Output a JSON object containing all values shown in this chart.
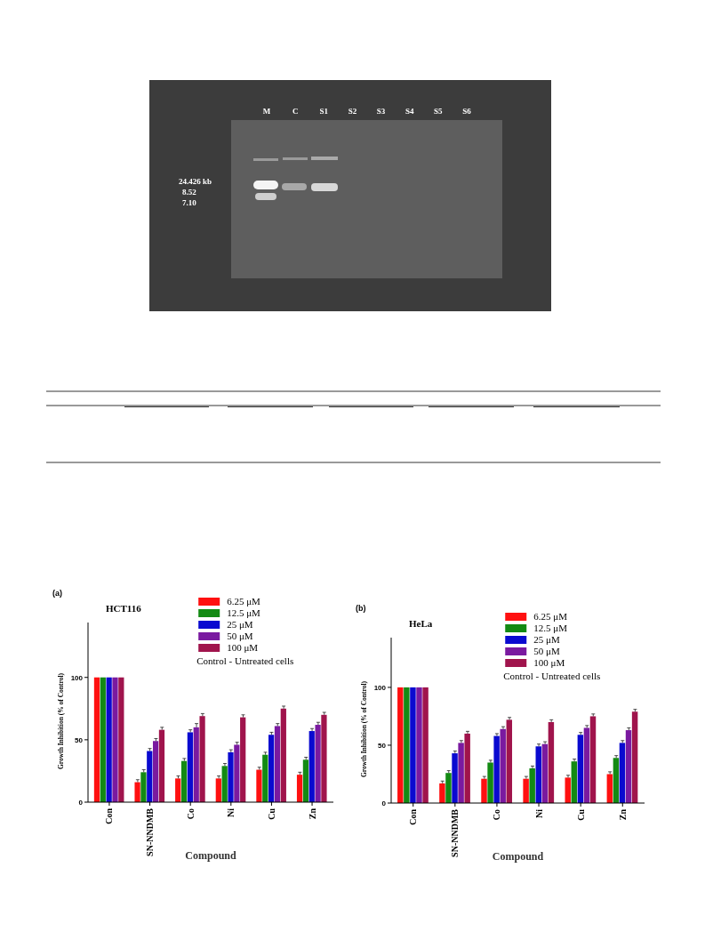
{
  "chart_data": [
    {
      "type": "other",
      "categories": [
        "M",
        "C",
        "S1",
        "S2",
        "S3",
        "S4",
        "S5",
        "S6"
      ],
      "annotations": [
        "24.426 kb",
        "8.52",
        "7.10"
      ]
    },
    {
      "type": "bar",
      "title": "HCT116",
      "xlabel": "Compound",
      "ylabel": "Growth Inhibition (% of Control)",
      "categories": [
        "Con",
        "SN-NNDMB",
        "Co",
        "Ni",
        "Cu",
        "Zn"
      ],
      "ylim": [
        0,
        144
      ],
      "yticks": [
        0,
        50,
        100
      ],
      "legend": "top right",
      "annotations": [
        "(a)",
        "Control - Untreated cells"
      ],
      "series": [
        {
          "name": "6.25 μM",
          "color": "#ff1010",
          "values": [
            100,
            16,
            19,
            19,
            26,
            22
          ],
          "errors": [
            null,
            2,
            2,
            2,
            2,
            2
          ]
        },
        {
          "name": "12.5 μM",
          "color": "#138a13",
          "values": [
            100,
            24,
            33,
            29,
            38,
            34
          ],
          "errors": [
            null,
            2,
            2,
            2,
            2,
            2
          ]
        },
        {
          "name": "25 μM",
          "color": "#0a0ad0",
          "values": [
            100,
            41,
            56,
            40,
            54,
            57
          ],
          "errors": [
            null,
            2,
            2,
            2,
            2,
            2
          ]
        },
        {
          "name": "50 μM",
          "color": "#7a1aa0",
          "values": [
            100,
            49,
            60,
            46,
            61,
            62
          ],
          "errors": [
            null,
            2,
            3,
            2,
            2,
            2
          ]
        },
        {
          "name": "100 μM",
          "color": "#a0144c",
          "values": [
            100,
            58,
            69,
            68,
            75,
            70
          ],
          "errors": [
            null,
            2,
            2,
            2,
            2,
            2
          ]
        }
      ]
    },
    {
      "type": "bar",
      "title": "HeLa",
      "xlabel": "Compound",
      "ylabel": "Growth Inhibition (% of Control)",
      "categories": [
        "Con",
        "SN-NNDMB",
        "Co",
        "Ni",
        "Cu",
        "Zn"
      ],
      "ylim": [
        0,
        143
      ],
      "yticks": [
        0,
        50,
        100
      ],
      "legend": "top right",
      "annotations": [
        "(b)",
        "Control - Untreated cells"
      ],
      "series": [
        {
          "name": "6.25 μM",
          "color": "#ff1010",
          "values": [
            100,
            17,
            21,
            21,
            22,
            25
          ],
          "errors": [
            null,
            2,
            2,
            2,
            2,
            2
          ]
        },
        {
          "name": "12.5 μM",
          "color": "#138a13",
          "values": [
            100,
            26,
            35,
            30,
            36,
            39
          ],
          "errors": [
            null,
            2,
            2,
            2,
            2,
            2
          ]
        },
        {
          "name": "25 μM",
          "color": "#0a0ad0",
          "values": [
            100,
            43,
            58,
            49,
            59,
            52
          ],
          "errors": [
            null,
            2,
            2,
            2,
            2,
            2
          ]
        },
        {
          "name": "50 μM",
          "color": "#7a1aa0",
          "values": [
            100,
            52,
            64,
            51,
            65,
            63
          ],
          "errors": [
            null,
            2,
            2,
            2,
            2,
            2
          ]
        },
        {
          "name": "100 μM",
          "color": "#a0144c",
          "values": [
            100,
            60,
            72,
            70,
            75,
            79
          ],
          "errors": [
            null,
            2,
            2,
            2,
            2,
            2
          ]
        }
      ]
    }
  ]
}
